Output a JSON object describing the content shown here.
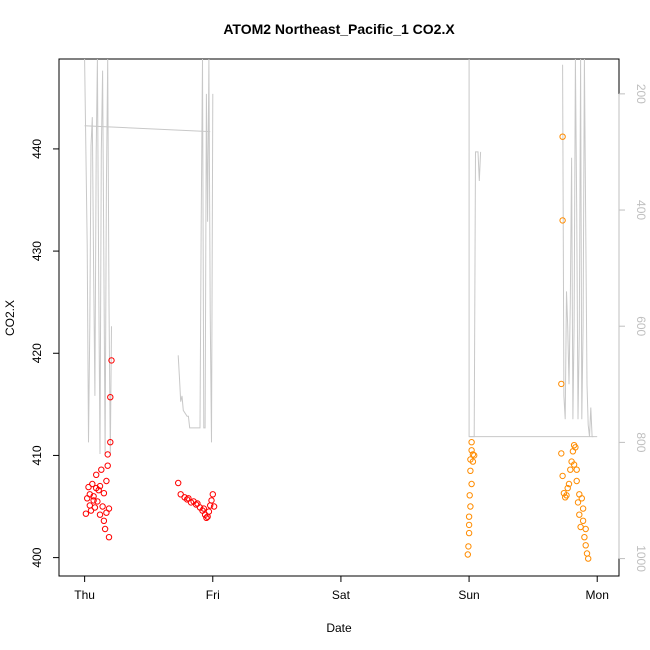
{
  "chart_data": {
    "type": "scatter",
    "title": "ATOM2 Northeast_Pacific_1 CO2.X",
    "xlabel": "Date",
    "ylabel": "CO2.X",
    "x_ticks": [
      "Thu",
      "Fri",
      "Sat",
      "Sun",
      "Mon"
    ],
    "xlim": [
      -0.2,
      4.17
    ],
    "ylim": [
      398.2,
      448.8
    ],
    "y_ticks": [
      400,
      410,
      420,
      430,
      440
    ],
    "y2_ticks": [
      200,
      400,
      600,
      800,
      1000
    ],
    "y2lim": [
      1030,
      140
    ],
    "y2_reversed": true,
    "colors": {
      "day1": "#ff0000",
      "day2": "#ff8c00",
      "altitude": "#c8c8c8",
      "right_axis": "#bfbfbf"
    },
    "series": [
      {
        "color_key": "day1",
        "points": [
          [
            0.01,
            404.3
          ],
          [
            0.02,
            405.8
          ],
          [
            0.03,
            406.9
          ],
          [
            0.04,
            405.1
          ],
          [
            0.05,
            404.6
          ],
          [
            0.06,
            407.2
          ],
          [
            0.07,
            406.0
          ],
          [
            0.08,
            404.9
          ],
          [
            0.09,
            408.1
          ],
          [
            0.1,
            405.5
          ],
          [
            0.11,
            406.6
          ],
          [
            0.12,
            404.2
          ],
          [
            0.13,
            408.6
          ],
          [
            0.14,
            405.0
          ],
          [
            0.15,
            403.6
          ],
          [
            0.16,
            402.8
          ],
          [
            0.17,
            404.4
          ],
          [
            0.18,
            409.0
          ],
          [
            0.18,
            410.1
          ],
          [
            0.19,
            402.0
          ],
          [
            0.19,
            404.8
          ],
          [
            0.2,
            411.3
          ],
          [
            0.2,
            415.7
          ],
          [
            0.21,
            419.3
          ],
          [
            0.17,
            407.5
          ],
          [
            0.15,
            406.3
          ],
          [
            0.12,
            407.0
          ],
          [
            0.09,
            406.8
          ],
          [
            0.07,
            405.6
          ],
          [
            0.04,
            406.2
          ],
          [
            0.73,
            407.3
          ],
          [
            0.75,
            406.2
          ],
          [
            0.78,
            405.9
          ],
          [
            0.8,
            405.7
          ],
          [
            0.83,
            405.4
          ],
          [
            0.85,
            405.5
          ],
          [
            0.87,
            405.2
          ],
          [
            0.9,
            404.9
          ],
          [
            0.92,
            404.6
          ],
          [
            0.94,
            404.2
          ],
          [
            0.95,
            403.9
          ],
          [
            0.97,
            404.5
          ],
          [
            0.98,
            405.1
          ],
          [
            0.99,
            405.6
          ],
          [
            1.0,
            406.2
          ],
          [
            1.01,
            405.0
          ],
          [
            0.96,
            404.0
          ],
          [
            0.93,
            404.8
          ],
          [
            0.88,
            405.3
          ],
          [
            0.81,
            405.8
          ]
        ]
      },
      {
        "color_key": "day2",
        "points": [
          [
            2.99,
            400.3
          ],
          [
            2.995,
            401.1
          ],
          [
            3.0,
            402.4
          ],
          [
            3.0,
            404.0
          ],
          [
            3.005,
            406.1
          ],
          [
            3.01,
            408.5
          ],
          [
            3.01,
            409.6
          ],
          [
            3.02,
            410.5
          ],
          [
            3.02,
            411.3
          ],
          [
            3.03,
            410.1
          ],
          [
            3.03,
            409.4
          ],
          [
            3.04,
            410.0
          ],
          [
            3.0,
            403.2
          ],
          [
            3.01,
            405.0
          ],
          [
            3.02,
            407.2
          ],
          [
            3.73,
            441.2
          ],
          [
            3.73,
            433.0
          ],
          [
            3.72,
            417.0
          ],
          [
            3.72,
            410.2
          ],
          [
            3.73,
            408.0
          ],
          [
            3.74,
            406.3
          ],
          [
            3.75,
            405.9
          ],
          [
            3.76,
            406.1
          ],
          [
            3.77,
            406.8
          ],
          [
            3.78,
            407.2
          ],
          [
            3.79,
            408.6
          ],
          [
            3.8,
            409.4
          ],
          [
            3.81,
            410.4
          ],
          [
            3.82,
            409.1
          ],
          [
            3.83,
            410.8
          ],
          [
            3.84,
            407.5
          ],
          [
            3.85,
            405.4
          ],
          [
            3.86,
            404.2
          ],
          [
            3.87,
            403.0
          ],
          [
            3.88,
            405.8
          ],
          [
            3.89,
            403.6
          ],
          [
            3.9,
            402.0
          ],
          [
            3.91,
            401.2
          ],
          [
            3.92,
            400.4
          ],
          [
            3.93,
            399.9
          ],
          [
            3.91,
            402.8
          ],
          [
            3.89,
            404.8
          ],
          [
            3.86,
            406.2
          ],
          [
            3.84,
            408.6
          ],
          [
            3.82,
            411.0
          ]
        ]
      }
    ],
    "altitude_segments": [
      [
        [
          0.0,
          140
        ],
        [
          0.01,
          300
        ],
        [
          0.02,
          460
        ],
        [
          0.03,
          800
        ],
        [
          0.04,
          600
        ],
        [
          0.05,
          290
        ],
        [
          0.06,
          240
        ],
        [
          0.07,
          500
        ],
        [
          0.08,
          720
        ],
        [
          0.09,
          300
        ],
        [
          0.1,
          140
        ],
        [
          0.11,
          520
        ],
        [
          0.12,
          820
        ],
        [
          0.13,
          300
        ],
        [
          0.14,
          160
        ],
        [
          0.15,
          500
        ],
        [
          0.16,
          820
        ],
        [
          0.17,
          360
        ],
        [
          0.18,
          140
        ],
        [
          0.19,
          560
        ],
        [
          0.2,
          820
        ],
        [
          0.21,
          600
        ]
      ],
      [
        [
          0.0,
          255
        ],
        [
          0.98,
          265
        ]
      ],
      [
        [
          0.73,
          650
        ],
        [
          0.74,
          690
        ],
        [
          0.75,
          730
        ],
        [
          0.76,
          720
        ],
        [
          0.77,
          745
        ],
        [
          0.8,
          755
        ],
        [
          0.81,
          755
        ],
        [
          0.82,
          775
        ],
        [
          0.9,
          775
        ],
        [
          0.91,
          420
        ],
        [
          0.92,
          140
        ],
        [
          0.93,
          775
        ],
        [
          0.94,
          775
        ],
        [
          0.95,
          200
        ],
        [
          0.96,
          420
        ],
        [
          0.97,
          140
        ],
        [
          0.98,
          575
        ],
        [
          0.99,
          800
        ],
        [
          1.0,
          200
        ]
      ],
      [
        [
          3.0,
          140
        ],
        [
          3.0,
          790
        ],
        [
          3.04,
          790
        ],
        [
          3.05,
          300
        ],
        [
          3.06,
          300
        ],
        [
          3.07,
          300
        ],
        [
          3.08,
          350
        ],
        [
          3.09,
          300
        ]
      ],
      [
        [
          3.0,
          790
        ],
        [
          4.0,
          790
        ]
      ],
      [
        [
          3.73,
          150
        ],
        [
          3.74,
          720
        ],
        [
          3.75,
          760
        ],
        [
          3.76,
          540
        ],
        [
          3.77,
          600
        ],
        [
          3.78,
          700
        ],
        [
          3.79,
          560
        ],
        [
          3.8,
          310
        ],
        [
          3.81,
          760
        ],
        [
          3.82,
          600
        ],
        [
          3.83,
          140
        ],
        [
          3.84,
          400
        ],
        [
          3.85,
          760
        ],
        [
          3.86,
          610
        ],
        [
          3.87,
          140
        ],
        [
          3.88,
          760
        ],
        [
          3.89,
          600
        ],
        [
          3.9,
          140
        ],
        [
          3.91,
          420
        ],
        [
          3.92,
          700
        ],
        [
          3.93,
          770
        ],
        [
          3.94,
          790
        ],
        [
          3.95,
          740
        ],
        [
          3.96,
          790
        ],
        [
          3.97,
          790
        ]
      ]
    ]
  }
}
